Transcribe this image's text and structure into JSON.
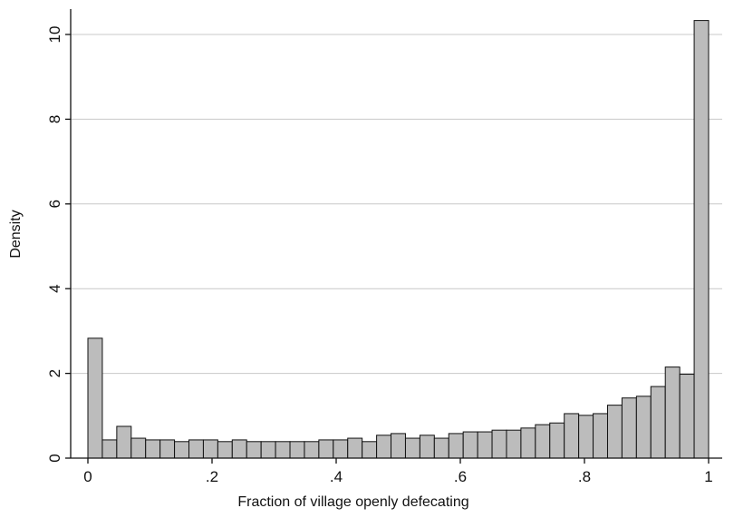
{
  "chart_data": {
    "type": "bar",
    "subtype": "histogram",
    "xlabel": "Fraction of village openly defecating",
    "ylabel": "Density",
    "xlim": [
      0,
      1
    ],
    "ylim": [
      0,
      10.4
    ],
    "xticks": [
      0,
      0.2,
      0.4,
      0.6,
      0.8,
      1
    ],
    "xtick_labels": [
      "0",
      ".2",
      ".4",
      ".6",
      ".8",
      "1"
    ],
    "yticks": [
      0,
      2,
      4,
      6,
      8,
      10
    ],
    "ytick_labels": [
      "0",
      "2",
      "4",
      "6",
      "8",
      "10"
    ],
    "grid": "horizontal",
    "legend": "none",
    "bin_start": 0,
    "bin_width": 0.0233,
    "values": [
      2.83,
      0.43,
      0.75,
      0.47,
      0.43,
      0.43,
      0.39,
      0.43,
      0.43,
      0.39,
      0.43,
      0.39,
      0.39,
      0.39,
      0.39,
      0.39,
      0.43,
      0.43,
      0.47,
      0.39,
      0.54,
      0.58,
      0.47,
      0.54,
      0.47,
      0.58,
      0.62,
      0.62,
      0.66,
      0.66,
      0.71,
      0.79,
      0.83,
      1.05,
      1.01,
      1.05,
      1.25,
      1.42,
      1.46,
      1.69,
      2.15,
      1.98,
      10.33
    ],
    "colors": {
      "bar_fill": "#bcbcbc",
      "bar_stroke": "#111111",
      "grid": "#c8c8c8"
    }
  }
}
